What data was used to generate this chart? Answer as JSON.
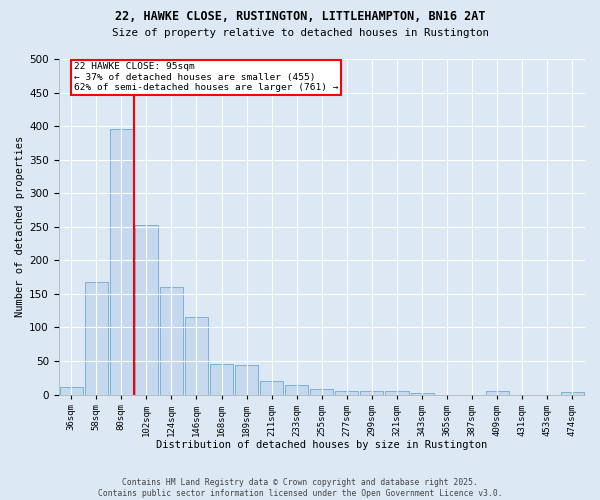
{
  "title_line1": "22, HAWKE CLOSE, RUSTINGTON, LITTLEHAMPTON, BN16 2AT",
  "title_line2": "Size of property relative to detached houses in Rustington",
  "xlabel": "Distribution of detached houses by size in Rustington",
  "ylabel": "Number of detached properties",
  "footer_line1": "Contains HM Land Registry data © Crown copyright and database right 2025.",
  "footer_line2": "Contains public sector information licensed under the Open Government Licence v3.0.",
  "categories": [
    "36sqm",
    "58sqm",
    "80sqm",
    "102sqm",
    "124sqm",
    "146sqm",
    "168sqm",
    "189sqm",
    "211sqm",
    "233sqm",
    "255sqm",
    "277sqm",
    "299sqm",
    "321sqm",
    "343sqm",
    "365sqm",
    "387sqm",
    "409sqm",
    "431sqm",
    "453sqm",
    "474sqm"
  ],
  "values": [
    12,
    168,
    395,
    253,
    160,
    115,
    46,
    44,
    20,
    14,
    9,
    6,
    5,
    5,
    3,
    0,
    0,
    5,
    0,
    0,
    4
  ],
  "bar_color": "#c5d8ee",
  "bar_edge_color": "#6baad0",
  "background_color": "#dce9f5",
  "grid_color": "#ffffff",
  "vline_x": 2.5,
  "vline_color": "red",
  "annotation_text": "22 HAWKE CLOSE: 95sqm\n← 37% of detached houses are smaller (455)\n62% of semi-detached houses are larger (761) →",
  "annotation_box_color": "white",
  "annotation_box_edge": "red",
  "ylim": [
    0,
    500
  ],
  "yticks": [
    0,
    50,
    100,
    150,
    200,
    250,
    300,
    350,
    400,
    450,
    500
  ]
}
